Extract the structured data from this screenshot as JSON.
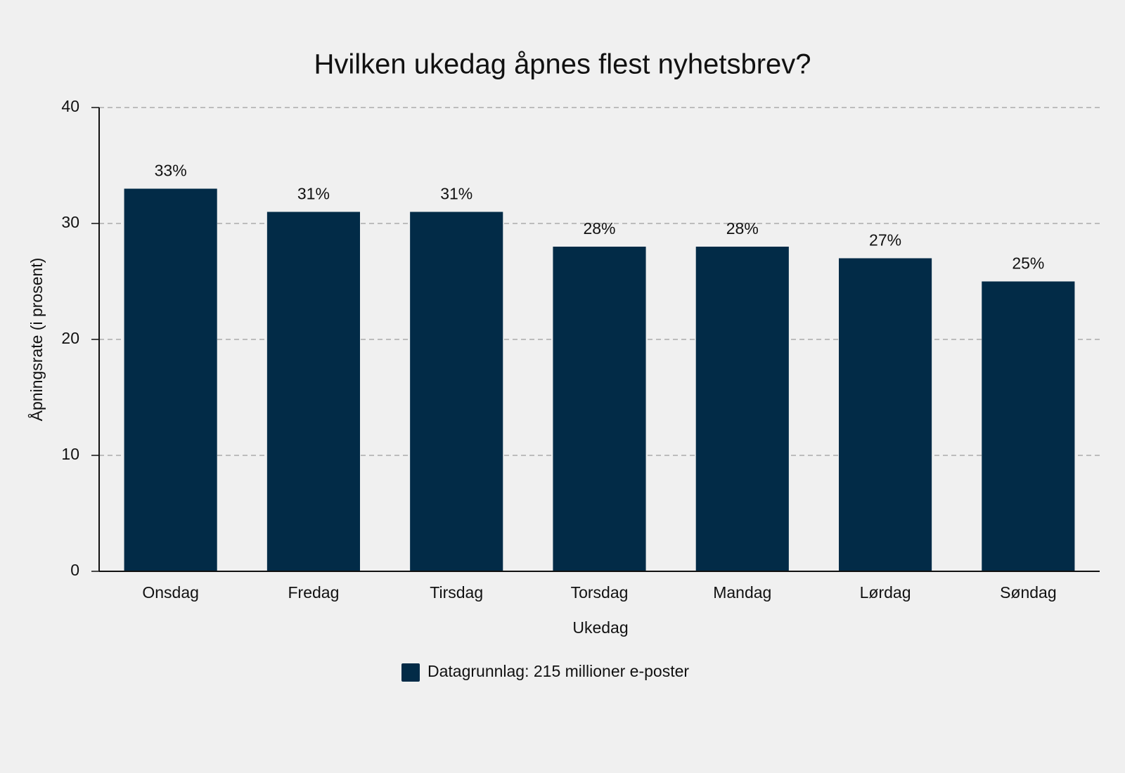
{
  "chart_data": {
    "type": "bar",
    "title": "Hvilken ukedag åpnes flest nyhetsbrev?",
    "x_label": "Ukedag",
    "y_label": "Åpningsrate (i prosent)",
    "categories": [
      "Onsdag",
      "Fredag",
      "Tirsdag",
      "Torsdag",
      "Mandag",
      "Lørdag",
      "Søndag"
    ],
    "series": [
      {
        "name": "Datagrunnlag: 215 millioner e-poster",
        "color": "#022b47",
        "values": [
          33,
          31,
          31,
          28,
          28,
          27,
          25
        ],
        "value_labels": [
          "33%",
          "31%",
          "31%",
          "28%",
          "28%",
          "27%",
          "25%"
        ]
      }
    ],
    "ylim": [
      0,
      40
    ],
    "yticks": [
      0,
      10,
      20,
      30,
      40
    ],
    "grid": true,
    "legend": "bottom"
  }
}
